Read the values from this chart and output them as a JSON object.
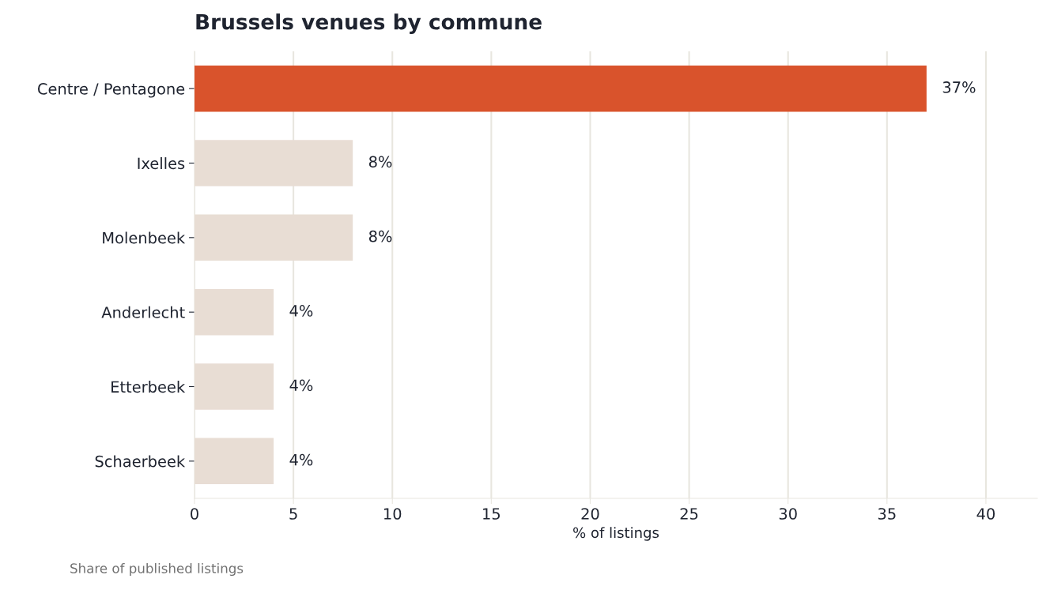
{
  "chart_data": {
    "type": "bar",
    "orientation": "horizontal",
    "title": "Brussels venues by commune",
    "xlabel": "% of listings",
    "categories": [
      "Centre / Pentagone",
      "Ixelles",
      "Molenbeek",
      "Anderlecht",
      "Etterbeek",
      "Schaerbeek"
    ],
    "values": [
      37,
      8,
      8,
      4,
      4,
      4
    ],
    "value_labels": [
      "37%",
      "8%",
      "8%",
      "4%",
      "4%",
      "4%"
    ],
    "colors": [
      "#d9532c",
      "#e8ddd4",
      "#e8ddd4",
      "#e8ddd4",
      "#e8ddd4",
      "#e8ddd4"
    ],
    "xlim": [
      0,
      42.6
    ],
    "xticks": [
      0,
      5,
      10,
      15,
      20,
      25,
      30,
      35,
      40
    ],
    "grid": "x",
    "annotations": [
      "Share of published listings"
    ]
  }
}
